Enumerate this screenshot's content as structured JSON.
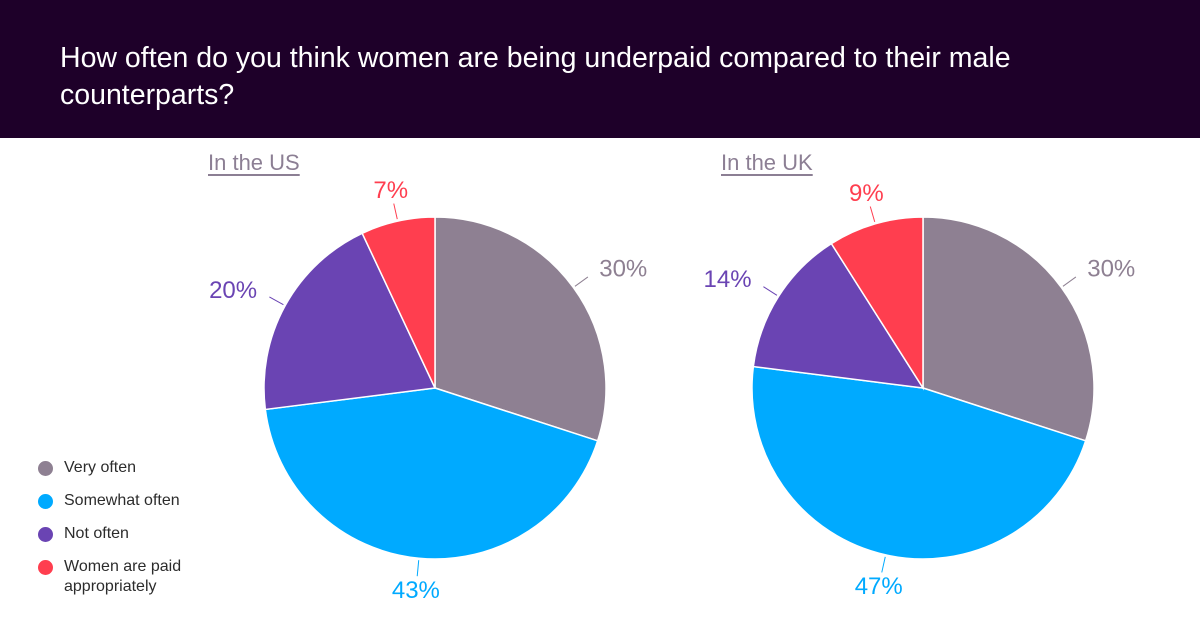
{
  "title": "How often do you think women are being underpaid compared to their male counterparts?",
  "legend": [
    {
      "label": "Very often",
      "color": "#8e8092"
    },
    {
      "label": "Somewhat often",
      "color": "#00aaff"
    },
    {
      "label": "Not often",
      "color": "#6a44b3"
    },
    {
      "label": "Women are paid appropriately",
      "color": "#ff3e4f"
    }
  ],
  "chart_data": [
    {
      "type": "pie",
      "title": "In the US",
      "categories": [
        "Very often",
        "Somewhat often",
        "Not often",
        "Women are paid appropriately"
      ],
      "values": [
        30,
        43,
        20,
        7
      ],
      "labels": [
        "30%",
        "43%",
        "20%",
        "7%"
      ],
      "colors": [
        "#8e8092",
        "#00aaff",
        "#6a44b3",
        "#ff3e4f"
      ]
    },
    {
      "type": "pie",
      "title": "In the UK",
      "categories": [
        "Very often",
        "Somewhat often",
        "Not often",
        "Women are paid appropriately"
      ],
      "values": [
        30,
        47,
        14,
        9
      ],
      "labels": [
        "30%",
        "47%",
        "14%",
        "9%"
      ],
      "colors": [
        "#8e8092",
        "#00aaff",
        "#6a44b3",
        "#ff3e4f"
      ]
    }
  ]
}
